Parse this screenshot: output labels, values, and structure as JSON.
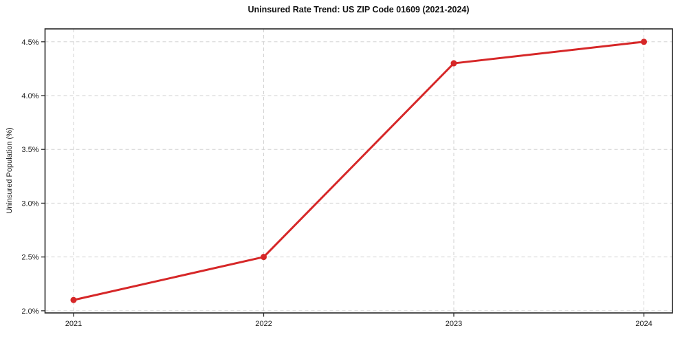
{
  "chart_data": {
    "type": "line",
    "title": "Uninsured Rate Trend: US ZIP Code 01609 (2021-2024)",
    "xlabel": "",
    "ylabel": "Uninsured Population (%)",
    "x": [
      2021,
      2022,
      2023,
      2024
    ],
    "x_tick_labels": [
      "2021",
      "2022",
      "2023",
      "2024"
    ],
    "series": [
      {
        "name": "Uninsured rate",
        "values": [
          2.1,
          2.5,
          4.3,
          4.5
        ]
      }
    ],
    "y_ticks": [
      2.0,
      2.5,
      3.0,
      3.5,
      4.0,
      4.5
    ],
    "y_tick_labels": [
      "2.0%",
      "2.5%",
      "3.0%",
      "3.5%",
      "4.0%",
      "4.5%"
    ],
    "xlim": [
      2020.85,
      2024.15
    ],
    "ylim": [
      1.98,
      4.62
    ],
    "grid": "dashed",
    "legend": "none",
    "colors": {
      "line": "#d62728",
      "marker": "#d62728",
      "gridline": "#d2d2d2",
      "spine": "#262626",
      "background": "#ffffff"
    }
  }
}
